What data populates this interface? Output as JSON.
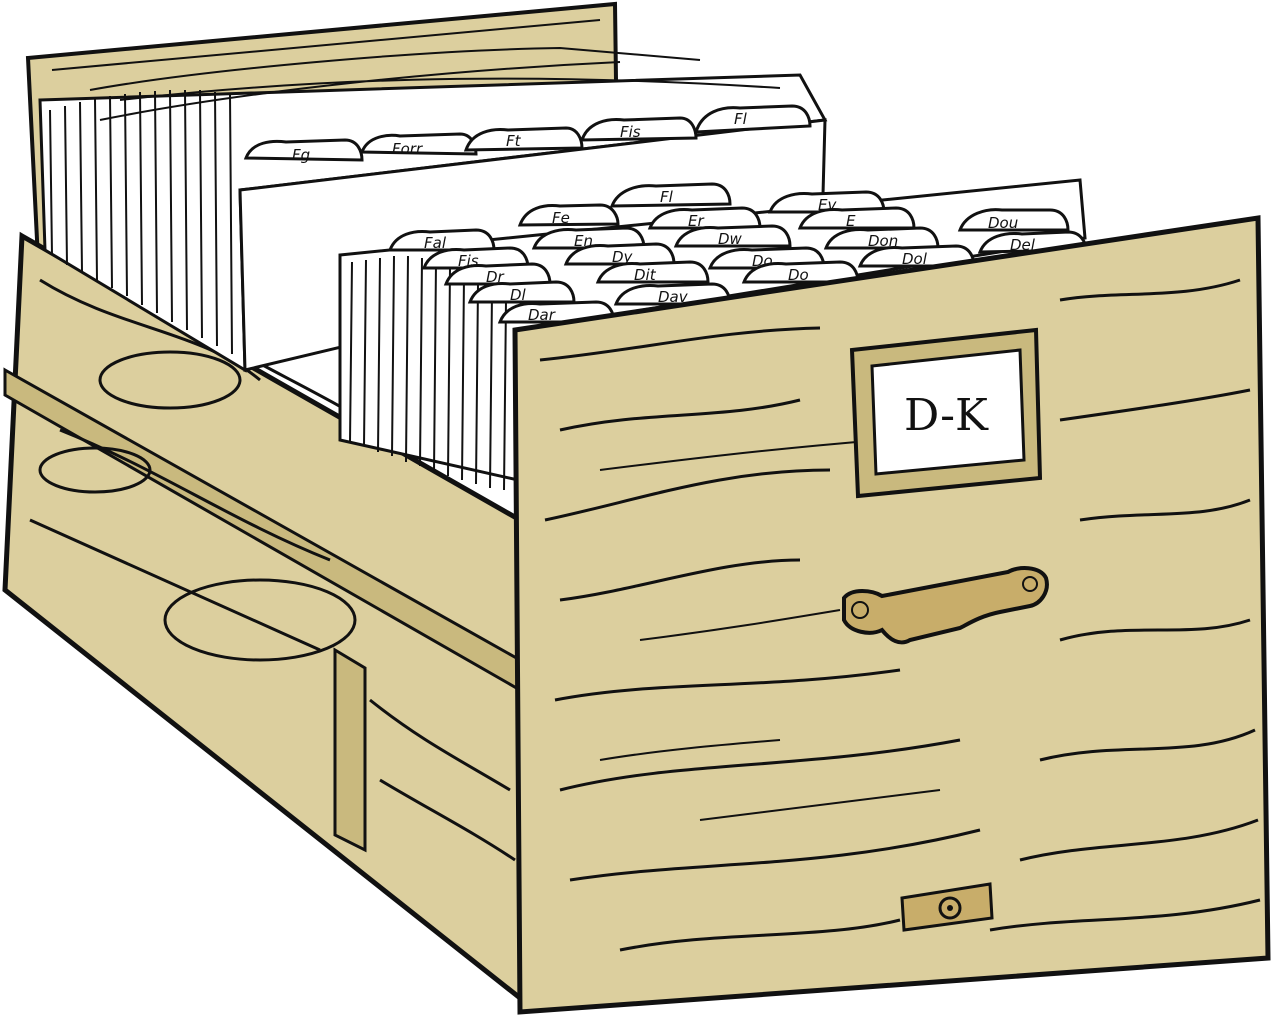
{
  "drawer": {
    "label": "D-K",
    "colors": {
      "wood": "#dccf9e",
      "wood_dark": "#c9b97e",
      "outline": "#111111",
      "card": "#ffffff",
      "handle": "#c8ad6a"
    }
  },
  "back_tabs": [
    "Fg",
    "Forr",
    "Ft",
    "Fis",
    "Fl"
  ],
  "front_tabs": {
    "row1": [
      "Fe",
      "Fl",
      "Ev",
      "E",
      "Dou"
    ],
    "row2": [
      "Fal",
      "En",
      "Er",
      "Dw",
      "Don",
      "Del"
    ],
    "row3": [
      "Fis",
      "Dy",
      "Do",
      "Do",
      "Dol"
    ],
    "row4": [
      "Dr",
      "Dit",
      "Dav"
    ],
    "row5": [
      "Dl",
      "Dar"
    ]
  }
}
